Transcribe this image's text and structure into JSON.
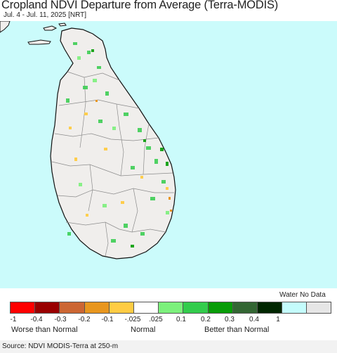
{
  "header": {
    "title": "Cropland NDVI Departure from Average (Terra-MODIS)",
    "subtitle": "Jul. 4 - Jul. 11, 2025 [NRT]"
  },
  "map": {
    "region": "Sri Lanka",
    "colors": {
      "water": "#cbfbfb",
      "land": "#f0eeec",
      "coast": "#111111",
      "district_borders": "#8c8c8c"
    }
  },
  "legend": {
    "extra_label": "Water No Data",
    "colors": [
      "#ff0000",
      "#990000",
      "#cc6633",
      "#e8961e",
      "#ffcc44",
      "#ffffff",
      "#7cf07c",
      "#33cc4c",
      "#089c08",
      "#336633",
      "#002600",
      "#c4fcfc",
      "#e6e6e6"
    ],
    "ticks": [
      "-1",
      "-0.4",
      "-0.3",
      "-0.2",
      "-0.1",
      "-.025",
      ".025",
      "0.1",
      "0.2",
      "0.3",
      "0.4",
      "1"
    ],
    "categories": [
      "Worse than Normal",
      "Normal",
      "Better than Normal"
    ]
  },
  "footer": {
    "source": "Source: NDVI MODIS-Terra at 250-m"
  }
}
